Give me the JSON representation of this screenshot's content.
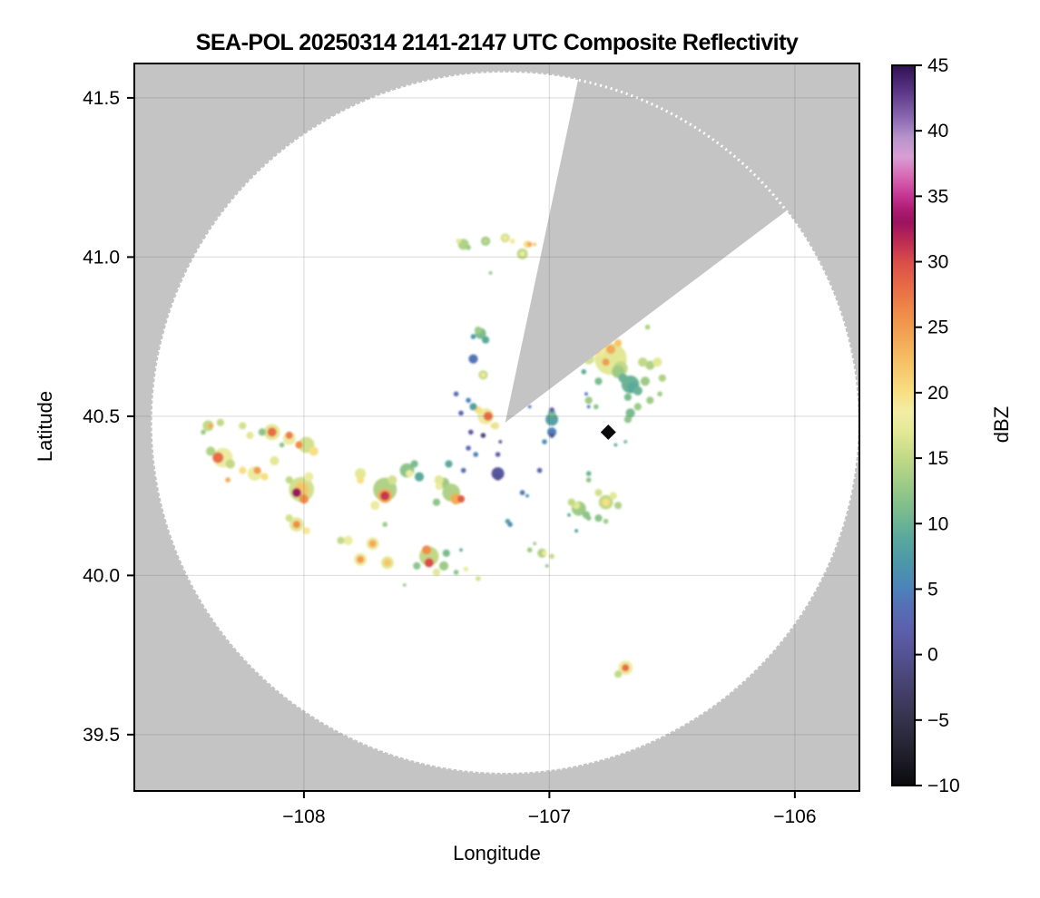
{
  "title": "SEA-POL 20250314 2141-2147 UTC Composite Reflectivity",
  "axes": {
    "xlabel": "Longitude",
    "ylabel": "Latitude",
    "x_ticks": [
      -108,
      -107,
      -106
    ],
    "x_tick_labels": [
      "−108",
      "−107",
      "−106"
    ],
    "y_ticks": [
      41.5,
      41.0,
      40.5,
      40.0,
      39.5
    ],
    "y_tick_labels": [
      "41.5",
      "41.0",
      "40.5",
      "40.0",
      "39.5"
    ],
    "grid": true,
    "background_outside_range": "#c4c4c4",
    "background_inside_range": "#ffffff"
  },
  "colorbar": {
    "label": "dBZ",
    "vmin": -10,
    "vmax": 45,
    "ticks": [
      45,
      40,
      35,
      30,
      25,
      20,
      15,
      10,
      5,
      0,
      -5,
      -10
    ],
    "tick_labels": [
      "45",
      "40",
      "35",
      "30",
      "25",
      "20",
      "15",
      "10",
      "5",
      "0",
      "−5",
      "−10"
    ],
    "colormap_stops": [
      [
        -10,
        "#0a0a0e"
      ],
      [
        -8,
        "#1d1c27"
      ],
      [
        -6,
        "#2d2b3f"
      ],
      [
        -4,
        "#3b3859"
      ],
      [
        -2,
        "#484574"
      ],
      [
        0,
        "#555293"
      ],
      [
        2,
        "#5c60ad"
      ],
      [
        4,
        "#5373b6"
      ],
      [
        5,
        "#4b83ba"
      ],
      [
        7,
        "#4d97a9"
      ],
      [
        9,
        "#5ba99c"
      ],
      [
        11,
        "#7abc8e"
      ],
      [
        13,
        "#9dcb86"
      ],
      [
        15,
        "#c1d987"
      ],
      [
        17,
        "#e3e896"
      ],
      [
        18.5,
        "#f2eda6"
      ],
      [
        20,
        "#f8df83"
      ],
      [
        22,
        "#f6c569"
      ],
      [
        24,
        "#f3aa56"
      ],
      [
        26,
        "#ef8d49"
      ],
      [
        28,
        "#e86d46"
      ],
      [
        30,
        "#d94d48"
      ],
      [
        31.5,
        "#bd2c53"
      ],
      [
        33,
        "#9c1260"
      ],
      [
        34,
        "#ad1c72"
      ],
      [
        35,
        "#c53493"
      ],
      [
        36.5,
        "#d668b4"
      ],
      [
        38,
        "#d99ed3"
      ],
      [
        39.5,
        "#b793cb"
      ],
      [
        41,
        "#8a68b0"
      ],
      [
        43,
        "#5b3687"
      ],
      [
        45,
        "#2f1152"
      ]
    ]
  },
  "chart_data": {
    "type": "heatmap",
    "subtype": "radar_ppi_composite",
    "value_units": "dBZ",
    "xlim": [
      -108.691,
      -105.737
    ],
    "ylim": [
      39.323,
      41.608
    ],
    "radar": {
      "lon": -107.18,
      "lat": 40.48,
      "range_lat_deg": 1.1,
      "blocked_sector_azimuth_deg": [
        12,
        53
      ]
    },
    "no_data_marker": {
      "lon": -106.76,
      "lat": 40.45,
      "dbz": -10,
      "shape": "diamond"
    },
    "echoes": [
      [
        -108.39,
        40.47,
        15,
        1.9
      ],
      [
        -108.38,
        40.47,
        24,
        0.9
      ],
      [
        -108.34,
        40.48,
        15,
        1.3
      ],
      [
        -108.41,
        40.45,
        13,
        0.9
      ],
      [
        -108.25,
        40.47,
        16,
        1.3
      ],
      [
        -108.22,
        40.44,
        17,
        1.3
      ],
      [
        -108.13,
        40.45,
        17,
        2.8
      ],
      [
        -108.13,
        40.45,
        28,
        1.6
      ],
      [
        -108.17,
        40.45,
        12,
        1.3
      ],
      [
        -108.06,
        40.43,
        18,
        2.2
      ],
      [
        -108.06,
        40.44,
        27,
        1.3
      ],
      [
        -107.99,
        40.41,
        16,
        2.8
      ],
      [
        -108.02,
        40.41,
        26,
        1.3
      ],
      [
        -107.96,
        40.39,
        20,
        1.6
      ],
      [
        -108.33,
        40.37,
        18,
        3.4
      ],
      [
        -108.35,
        40.37,
        28,
        1.9
      ],
      [
        -108.3,
        40.35,
        15,
        1.6
      ],
      [
        -108.38,
        40.39,
        14,
        1.6
      ],
      [
        -108.2,
        40.32,
        18,
        2.5
      ],
      [
        -108.19,
        40.33,
        25,
        1.3
      ],
      [
        -108.16,
        40.31,
        20,
        1.3
      ],
      [
        -108.25,
        40.33,
        20,
        1.3
      ],
      [
        -108.31,
        40.3,
        24,
        0.9
      ],
      [
        -108.12,
        40.36,
        17,
        1.6
      ],
      [
        -108.09,
        40.41,
        12,
        0.9
      ],
      [
        -108.01,
        40.27,
        16,
        4.4
      ],
      [
        -108.01,
        40.27,
        22,
        2.5
      ],
      [
        -108.03,
        40.26,
        33,
        1.6
      ],
      [
        -108.0,
        40.24,
        26,
        1.6
      ],
      [
        -107.98,
        40.31,
        18,
        1.6
      ],
      [
        -108.06,
        40.3,
        15,
        1.3
      ],
      [
        -108.03,
        40.16,
        17,
        2.5
      ],
      [
        -108.03,
        40.16,
        26,
        1.3
      ],
      [
        -108.06,
        40.18,
        16,
        1.3
      ],
      [
        -107.99,
        40.14,
        19,
        1.3
      ],
      [
        -107.82,
        40.11,
        18,
        1.6
      ],
      [
        -107.85,
        40.11,
        15,
        1.3
      ],
      [
        -107.77,
        40.32,
        17,
        1.9
      ],
      [
        -107.77,
        40.3,
        20,
        1.3
      ],
      [
        -107.72,
        40.1,
        18,
        2.2
      ],
      [
        -107.72,
        40.1,
        24,
        1.3
      ],
      [
        -107.77,
        40.05,
        18,
        2.2
      ],
      [
        -107.77,
        40.05,
        25,
        1.3
      ],
      [
        -107.66,
        40.04,
        17,
        2.2
      ],
      [
        -107.66,
        40.04,
        22,
        1.3
      ],
      [
        -107.67,
        40.27,
        14,
        4.1
      ],
      [
        -107.67,
        40.25,
        24,
        2.5
      ],
      [
        -107.67,
        40.25,
        31,
        1.6
      ],
      [
        -107.64,
        40.3,
        16,
        1.6
      ],
      [
        -107.71,
        40.22,
        18,
        1.6
      ],
      [
        -107.58,
        40.33,
        12,
        2.5
      ],
      [
        -107.57,
        40.32,
        18,
        1.3
      ],
      [
        -107.53,
        40.31,
        9,
        1.6
      ],
      [
        -107.55,
        40.35,
        11,
        1.3
      ],
      [
        -107.43,
        40.29,
        13,
        1.9
      ],
      [
        -107.45,
        40.28,
        18,
        1.3
      ],
      [
        -107.4,
        40.26,
        14,
        3.1
      ],
      [
        -107.38,
        40.24,
        24,
        1.9
      ],
      [
        -107.36,
        40.24,
        29,
        1.3
      ],
      [
        -107.45,
        40.3,
        17,
        1.6
      ],
      [
        -107.46,
        40.23,
        12,
        1.3
      ],
      [
        -107.35,
        40.33,
        3,
        0.9
      ],
      [
        -107.41,
        40.35,
        9,
        1.3
      ],
      [
        -107.49,
        40.06,
        15,
        3.4
      ],
      [
        -107.5,
        40.08,
        26,
        1.6
      ],
      [
        -107.49,
        40.04,
        30,
        1.6
      ],
      [
        -107.46,
        40.01,
        17,
        1.3
      ],
      [
        -107.43,
        40.03,
        13,
        1.6
      ],
      [
        -107.54,
        40.03,
        12,
        1.3
      ],
      [
        -107.42,
        40.07,
        11,
        1.3
      ],
      [
        -107.38,
        40.01,
        12,
        0.9
      ],
      [
        -107.34,
        40.02,
        18,
        0.9
      ],
      [
        -107.29,
        39.99,
        16,
        0.9
      ],
      [
        -107.67,
        40.16,
        13,
        0.9
      ],
      [
        -107.59,
        39.97,
        13,
        0.6
      ],
      [
        -107.31,
        40.68,
        4,
        1.6
      ],
      [
        -107.27,
        40.63,
        15,
        1.6
      ],
      [
        -107.27,
        40.63,
        19,
        0.9
      ],
      [
        -107.26,
        40.5,
        18,
        2.8
      ],
      [
        -107.25,
        40.5,
        28,
        1.6
      ],
      [
        -107.29,
        40.52,
        20,
        1.3
      ],
      [
        -107.22,
        40.47,
        17,
        1.3
      ],
      [
        -107.31,
        40.53,
        8,
        1.3
      ],
      [
        -107.33,
        40.55,
        5,
        0.9
      ],
      [
        -107.36,
        40.51,
        2,
        0.9
      ],
      [
        -107.32,
        40.45,
        1,
        0.9
      ],
      [
        -107.27,
        40.44,
        -2,
        0.9
      ],
      [
        -107.21,
        40.38,
        2,
        0.9
      ],
      [
        -107.2,
        40.42,
        0,
        0.6
      ],
      [
        -107.38,
        40.57,
        3,
        0.9
      ],
      [
        -107.33,
        40.4,
        3,
        0.9
      ],
      [
        -107.3,
        40.38,
        5,
        0.9
      ],
      [
        -107.23,
        40.47,
        20,
        0.9
      ],
      [
        -107.21,
        40.32,
        1,
        2.2
      ],
      [
        -107.21,
        40.31,
        0,
        1.3
      ],
      [
        -107.11,
        40.26,
        4,
        0.9
      ],
      [
        -107.09,
        40.25,
        6,
        0.6
      ],
      [
        -107.17,
        40.17,
        8,
        0.9
      ],
      [
        -107.16,
        40.16,
        6,
        0.9
      ],
      [
        -107.04,
        40.33,
        2,
        0.9
      ],
      [
        -106.99,
        40.49,
        8,
        2.2
      ],
      [
        -106.99,
        40.51,
        11,
        1.3
      ],
      [
        -106.99,
        40.52,
        2,
        0.9
      ],
      [
        -106.99,
        40.45,
        5,
        1.6
      ],
      [
        -106.99,
        40.44,
        0,
        0.9
      ],
      [
        -107.02,
        40.42,
        6,
        0.9
      ],
      [
        -107.08,
        40.53,
        5,
        0.6
      ],
      [
        -106.86,
        40.64,
        9,
        0.9
      ],
      [
        -106.85,
        40.57,
        4,
        0.6
      ],
      [
        -106.84,
        40.53,
        5,
        0.6
      ],
      [
        -106.89,
        40.14,
        7,
        0.6
      ],
      [
        -107.03,
        40.07,
        14,
        1.6
      ],
      [
        -107.02,
        40.07,
        19,
        0.9
      ],
      [
        -107.06,
        40.1,
        13,
        0.6
      ],
      [
        -107.01,
        40.03,
        12,
        0.6
      ],
      [
        -107.08,
        40.08,
        13,
        0.9
      ],
      [
        -106.99,
        40.06,
        15,
        0.9
      ],
      [
        -107.36,
        40.08,
        9,
        0.6
      ],
      [
        -106.75,
        40.68,
        17,
        5.6
      ],
      [
        -106.8,
        40.71,
        19,
        2.5
      ],
      [
        -106.75,
        40.71,
        24,
        1.6
      ],
      [
        -106.81,
        40.71,
        26,
        1.3
      ],
      [
        -106.77,
        40.67,
        25,
        1.3
      ],
      [
        -106.72,
        40.73,
        22,
        1.3
      ],
      [
        -106.84,
        40.68,
        16,
        1.9
      ],
      [
        -106.71,
        40.65,
        15,
        2.5
      ],
      [
        -106.72,
        40.64,
        13,
        2.2
      ],
      [
        -106.67,
        40.6,
        10,
        3.1
      ],
      [
        -106.66,
        40.59,
        9,
        1.9
      ],
      [
        -106.7,
        40.62,
        10,
        1.6
      ],
      [
        -106.64,
        40.58,
        10,
        1.6
      ],
      [
        -106.61,
        40.61,
        13,
        1.6
      ],
      [
        -106.59,
        40.66,
        14,
        1.6
      ],
      [
        -106.62,
        40.67,
        15,
        1.6
      ],
      [
        -106.56,
        40.67,
        17,
        1.6
      ],
      [
        -106.54,
        40.62,
        14,
        1.3
      ],
      [
        -106.8,
        40.61,
        11,
        1.3
      ],
      [
        -106.84,
        40.55,
        13,
        1.3
      ],
      [
        -106.81,
        40.53,
        12,
        0.9
      ],
      [
        -106.67,
        40.51,
        11,
        1.6
      ],
      [
        -106.68,
        40.49,
        12,
        1.3
      ],
      [
        -106.64,
        40.53,
        13,
        1.3
      ],
      [
        -106.59,
        40.55,
        13,
        1.3
      ],
      [
        -106.68,
        40.56,
        11,
        1.3
      ],
      [
        -106.55,
        40.57,
        13,
        0.9
      ],
      [
        -106.6,
        40.78,
        14,
        0.9
      ],
      [
        -106.73,
        40.41,
        9,
        0.6
      ],
      [
        -106.69,
        40.42,
        10,
        0.6
      ],
      [
        -106.88,
        40.21,
        13,
        2.5
      ],
      [
        -106.89,
        40.22,
        17,
        1.3
      ],
      [
        -106.91,
        40.23,
        15,
        1.3
      ],
      [
        -106.85,
        40.19,
        12,
        1.3
      ],
      [
        -106.92,
        40.19,
        9,
        0.6
      ],
      [
        -106.84,
        40.18,
        12,
        0.9
      ],
      [
        -106.77,
        40.23,
        15,
        2.5
      ],
      [
        -106.77,
        40.23,
        20,
        1.3
      ],
      [
        -106.74,
        40.25,
        17,
        1.3
      ],
      [
        -106.8,
        40.26,
        16,
        1.3
      ],
      [
        -106.72,
        40.22,
        14,
        1.3
      ],
      [
        -106.8,
        40.18,
        12,
        1.3
      ],
      [
        -106.77,
        40.17,
        13,
        0.9
      ],
      [
        -106.84,
        40.32,
        10,
        0.9
      ],
      [
        -106.84,
        40.3,
        12,
        0.9
      ],
      [
        -107.35,
        41.04,
        14,
        1.9
      ],
      [
        -107.37,
        41.05,
        17,
        0.9
      ],
      [
        -107.33,
        41.03,
        13,
        0.9
      ],
      [
        -107.26,
        41.05,
        13,
        1.6
      ],
      [
        -107.26,
        41.05,
        15,
        0.9
      ],
      [
        -107.18,
        41.06,
        16,
        1.6
      ],
      [
        -107.18,
        41.06,
        19,
        0.9
      ],
      [
        -107.15,
        41.05,
        19,
        0.9
      ],
      [
        -107.09,
        41.04,
        20,
        1.3
      ],
      [
        -107.08,
        41.04,
        24,
        0.9
      ],
      [
        -107.06,
        41.04,
        22,
        0.6
      ],
      [
        -107.11,
        41.01,
        15,
        1.9
      ],
      [
        -107.11,
        41.01,
        18,
        0.9
      ],
      [
        -107.24,
        40.95,
        12,
        0.6
      ],
      [
        -107.28,
        40.76,
        11,
        1.9
      ],
      [
        -107.29,
        40.77,
        13,
        1.3
      ],
      [
        -107.26,
        40.74,
        9,
        1.3
      ],
      [
        -107.31,
        40.75,
        7,
        0.9
      ],
      [
        -106.69,
        39.71,
        18,
        2.5
      ],
      [
        -106.69,
        39.71,
        28,
        1.3
      ],
      [
        -106.72,
        39.69,
        15,
        1.3
      ]
    ]
  }
}
